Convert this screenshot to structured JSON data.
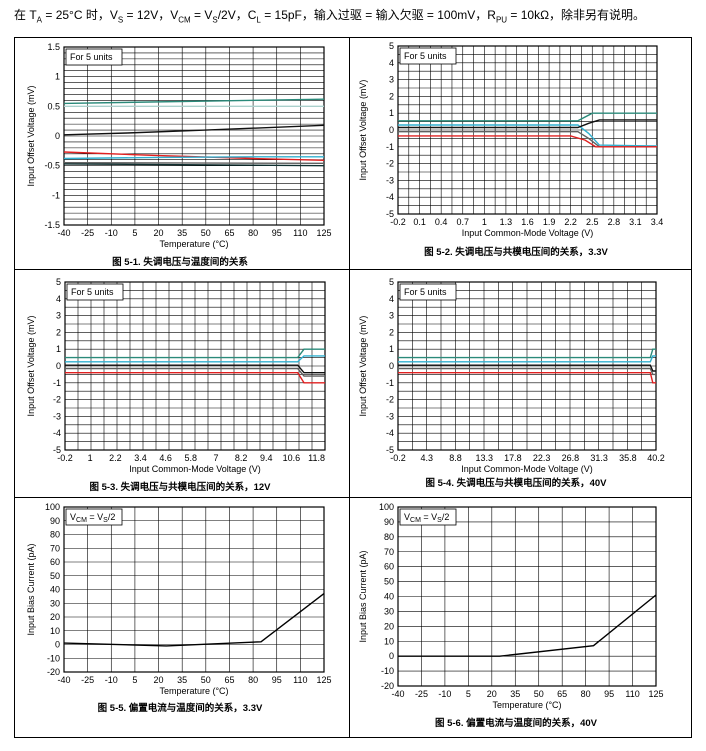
{
  "header": {
    "parts": [
      {
        "t": "在 T"
      },
      {
        "s": "A"
      },
      {
        "t": " = 25°C 时，V"
      },
      {
        "s": "S"
      },
      {
        "t": " = 12V，V"
      },
      {
        "s": "CM"
      },
      {
        "t": " = V"
      },
      {
        "s": "S"
      },
      {
        "t": "/2V，C"
      },
      {
        "s": "L"
      },
      {
        "t": " = 15pF，输入过驱 = 输入欠驱 = 100mV，R"
      },
      {
        "s": "PU"
      },
      {
        "t": " = 10kΩ，除非另有说明。"
      }
    ]
  },
  "chart_data": [
    {
      "type": "line",
      "caption": "图 5-1. 失调电压与温度间的关系",
      "note": "For 5 units",
      "xlabel": "Temperature (°C)",
      "ylabel": "Input Offset Voltage (mV)",
      "xlim": [
        -40,
        125
      ],
      "ylim": [
        -1.5,
        1.5
      ],
      "xticks": [
        -40,
        -25,
        -10,
        5,
        20,
        35,
        50,
        65,
        80,
        95,
        110,
        125
      ],
      "yticks": [
        -1.5,
        -1,
        -0.5,
        0,
        0.5,
        1,
        1.5
      ],
      "ytick_labels": [
        "-1.5",
        "-1",
        "-0.5",
        "0",
        "0.5",
        "1",
        "1.5"
      ],
      "grid": true,
      "series": [
        {
          "color": "#2a8a7a",
          "x": [
            -40,
            125
          ],
          "y": [
            0.55,
            0.62
          ]
        },
        {
          "color": "#aad0cc",
          "x": [
            -40,
            125
          ],
          "y": [
            0.5,
            0.5
          ]
        },
        {
          "color": "#111111",
          "x": [
            -40,
            0,
            50,
            125
          ],
          "y": [
            0.02,
            0.05,
            0.1,
            0.18
          ]
        },
        {
          "color": "#e02020",
          "x": [
            -40,
            20,
            80,
            125
          ],
          "y": [
            -0.27,
            -0.33,
            -0.38,
            -0.41
          ]
        },
        {
          "color": "#30b0d0",
          "x": [
            -40,
            20,
            80,
            125
          ],
          "y": [
            -0.38,
            -0.36,
            -0.35,
            -0.35
          ]
        },
        {
          "color": "#606060",
          "x": [
            -40,
            125
          ],
          "y": [
            -0.45,
            -0.46
          ]
        },
        {
          "color": "#103030",
          "x": [
            -40,
            125
          ],
          "y": [
            -0.47,
            -0.5
          ]
        }
      ]
    },
    {
      "type": "line",
      "caption": "图 5-2. 失调电压与共模电压间的关系，3.3V",
      "note": "For 5 units",
      "xlabel": "Input Common-Mode Voltage (V)",
      "ylabel": "Input Offset Voltage (mV)",
      "xlim": [
        -0.2,
        3.4
      ],
      "ylim": [
        -5,
        5
      ],
      "xticks": [
        -0.2,
        0.1,
        0.4,
        0.7,
        1,
        1.3,
        1.6,
        1.9,
        2.2,
        2.5,
        2.8,
        3.1,
        3.4
      ],
      "xtick_labels": [
        "-0.2",
        "0.1",
        "0.4",
        "0.7",
        "1",
        "1.3",
        "1.6",
        "1.9",
        "2.2",
        "2.5",
        "2.8",
        "3.1",
        "3.4"
      ],
      "yticks": [
        -5,
        -4,
        -3,
        -2,
        -1,
        0,
        1,
        2,
        3,
        4,
        5
      ],
      "grid": true,
      "series": [
        {
          "color": "#2a8a7a",
          "x": [
            -0.2,
            2.3,
            2.5,
            3.4
          ],
          "y": [
            0.55,
            0.55,
            1.0,
            1.0
          ]
        },
        {
          "color": "#30b0d0",
          "x": [
            -0.2,
            2.3,
            2.45,
            2.6,
            3.4
          ],
          "y": [
            0.3,
            0.3,
            -0.2,
            -0.9,
            -0.95
          ]
        },
        {
          "color": "#111111",
          "x": [
            -0.2,
            2.3,
            2.45,
            2.6,
            3.4
          ],
          "y": [
            0.15,
            0.15,
            0.4,
            0.6,
            0.6
          ]
        },
        {
          "color": "#606060",
          "x": [
            -0.2,
            2.3,
            2.45,
            2.6,
            3.4
          ],
          "y": [
            -0.1,
            -0.1,
            -0.5,
            -1.0,
            -1.0
          ]
        },
        {
          "color": "#e02020",
          "x": [
            -0.2,
            2.2,
            2.4,
            2.55,
            3.4
          ],
          "y": [
            -0.35,
            -0.35,
            -0.6,
            -1.0,
            -1.0
          ]
        }
      ]
    },
    {
      "type": "line",
      "caption": "图 5-3. 失调电压与共模电压间的关系，12V",
      "note": "For 5 units",
      "xlabel": "Input Common-Mode Voltage (V)",
      "ylabel": "Input Offset Voltage (mV)",
      "xlim": [
        -0.2,
        12.2
      ],
      "ylim": [
        -5,
        5
      ],
      "xticks": [
        -0.2,
        1,
        2.2,
        3.4,
        4.6,
        5.8,
        7,
        8.2,
        9.4,
        10.6,
        11.8
      ],
      "xtick_labels": [
        "-0.2",
        "1",
        "2.2",
        "3.4",
        "4.6",
        "5.8",
        "7",
        "8.2",
        "9.4",
        "10.6",
        "11.8"
      ],
      "yticks": [
        -5,
        -4,
        -3,
        -2,
        -1,
        0,
        1,
        2,
        3,
        4,
        5
      ],
      "grid": true,
      "series": [
        {
          "color": "#2a8a7a",
          "x": [
            -0.2,
            10.9,
            11.2,
            12.2
          ],
          "y": [
            0.5,
            0.5,
            1.0,
            1.0
          ]
        },
        {
          "color": "#30b0d0",
          "x": [
            -0.2,
            10.9,
            11.2,
            12.2
          ],
          "y": [
            0.25,
            0.25,
            0.6,
            0.6
          ]
        },
        {
          "color": "#111111",
          "x": [
            -0.2,
            10.9,
            11.2,
            12.2
          ],
          "y": [
            0.05,
            0.05,
            -0.4,
            -0.4
          ]
        },
        {
          "color": "#606060",
          "x": [
            -0.2,
            10.9,
            11.2,
            12.2
          ],
          "y": [
            -0.15,
            -0.15,
            -0.6,
            -0.6
          ]
        },
        {
          "color": "#e02020",
          "x": [
            -0.2,
            10.9,
            11.2,
            12.2
          ],
          "y": [
            -0.4,
            -0.4,
            -1.0,
            -1.0
          ]
        }
      ]
    },
    {
      "type": "line",
      "caption": "图 5-4. 失调电压与共模电压间的关系，40V",
      "note": "For 5 units",
      "xlabel": "Input Common-Mode Voltage (V)",
      "ylabel": "Input Offset Voltage (mV)",
      "xlim": [
        -0.2,
        40.2
      ],
      "ylim": [
        -5,
        5
      ],
      "xticks": [
        -0.2,
        4.3,
        8.8,
        13.3,
        17.8,
        22.3,
        26.8,
        31.3,
        35.8,
        40.2
      ],
      "xtick_labels": [
        "-0.2",
        "4.3",
        "8.8",
        "13.3",
        "17.8",
        "22.3",
        "26.8",
        "31.3",
        "35.8",
        "40.2"
      ],
      "yticks": [
        -5,
        -4,
        -3,
        -2,
        -1,
        0,
        1,
        2,
        3,
        4,
        5
      ],
      "grid": true,
      "series": [
        {
          "color": "#2a8a7a",
          "x": [
            -0.2,
            39.3,
            39.7,
            40.2
          ],
          "y": [
            0.5,
            0.5,
            1.0,
            1.0
          ]
        },
        {
          "color": "#30b0d0",
          "x": [
            -0.2,
            39.3,
            39.7,
            40.2
          ],
          "y": [
            0.25,
            0.25,
            0.6,
            0.6
          ]
        },
        {
          "color": "#111111",
          "x": [
            -0.2,
            39.3,
            39.7,
            40.2
          ],
          "y": [
            0.05,
            0.05,
            -0.3,
            -0.3
          ]
        },
        {
          "color": "#606060",
          "x": [
            -0.2,
            39.3,
            39.7,
            40.2
          ],
          "y": [
            -0.15,
            -0.15,
            -0.5,
            -0.5
          ]
        },
        {
          "color": "#e02020",
          "x": [
            -0.2,
            39.3,
            39.7,
            40.2
          ],
          "y": [
            -0.4,
            -0.4,
            -1.0,
            -1.0
          ]
        }
      ]
    },
    {
      "type": "line",
      "caption": "图 5-5. 偏置电流与温度间的关系，3.3V",
      "note": "V_CM = V_S/2",
      "xlabel": "Temperature (°C)",
      "ylabel": "Input Bias Current (pA)",
      "xlim": [
        -40,
        125
      ],
      "ylim": [
        -20,
        100
      ],
      "xticks": [
        -40,
        -25,
        -10,
        5,
        20,
        35,
        50,
        65,
        80,
        95,
        110,
        125
      ],
      "yticks": [
        -20,
        -10,
        0,
        10,
        20,
        30,
        40,
        50,
        60,
        70,
        80,
        90,
        100
      ],
      "grid": true,
      "series": [
        {
          "color": "#000000",
          "x": [
            -40,
            25,
            85,
            125
          ],
          "y": [
            1,
            -1,
            2,
            37
          ]
        }
      ]
    },
    {
      "type": "line",
      "caption": "图 5-6. 偏置电流与温度间的关系，40V",
      "note": "V_CM = V_S/2",
      "xlabel": "Temperature (°C)",
      "ylabel": "Input Bias Current (pA)",
      "xlim": [
        -40,
        125
      ],
      "ylim": [
        -20,
        100
      ],
      "xticks": [
        -40,
        -25,
        -10,
        5,
        20,
        35,
        50,
        65,
        80,
        95,
        110,
        125
      ],
      "yticks": [
        -20,
        -10,
        0,
        10,
        20,
        30,
        40,
        50,
        60,
        70,
        80,
        90,
        100
      ],
      "grid": true,
      "series": [
        {
          "color": "#000000",
          "x": [
            -40,
            25,
            85,
            125
          ],
          "y": [
            0,
            0,
            7,
            41
          ]
        }
      ]
    }
  ]
}
